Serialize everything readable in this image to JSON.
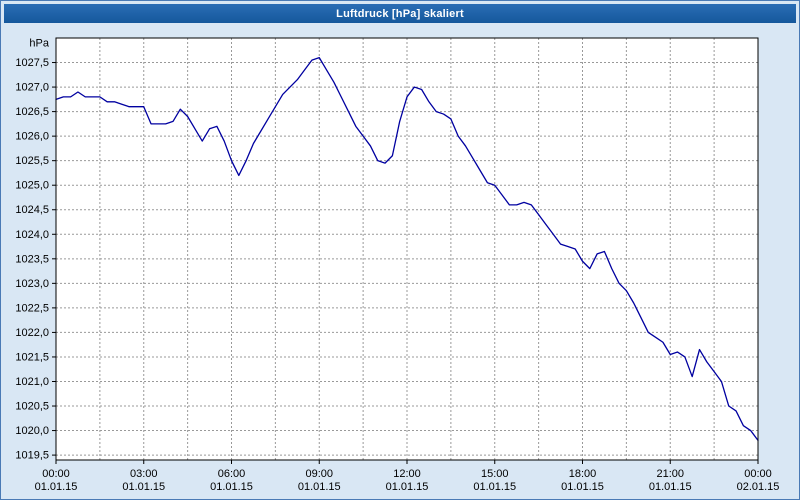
{
  "window": {
    "title": "Luftdruck [hPa] skaliert"
  },
  "colors": {
    "titlebar_bg": "#15589c",
    "titlebar_text": "#ffffff",
    "frame_bg": "#d9e7f4",
    "plot_bg": "#ffffff",
    "grid": "#999999",
    "axis": "#000000",
    "line": "#0000a0",
    "tick_text": "#000000"
  },
  "chart_data": {
    "type": "line",
    "title": "Luftdruck [hPa] skaliert",
    "unit_label": "hPa",
    "series_name": "Luftdruck",
    "x_start_hour": 0,
    "x_step_hour": 0.25,
    "values": [
      1026.75,
      1026.8,
      1026.8,
      1026.9,
      1026.8,
      1026.8,
      1026.8,
      1026.7,
      1026.7,
      1026.65,
      1026.6,
      1026.6,
      1026.6,
      1026.25,
      1026.25,
      1026.25,
      1026.3,
      1026.55,
      1026.4,
      1026.15,
      1025.9,
      1026.15,
      1026.2,
      1025.9,
      1025.5,
      1025.2,
      1025.5,
      1025.85,
      1026.1,
      1026.35,
      1026.6,
      1026.85,
      1027.0,
      1027.15,
      1027.35,
      1027.55,
      1027.6,
      1027.35,
      1027.1,
      1026.8,
      1026.5,
      1026.2,
      1026.0,
      1025.8,
      1025.5,
      1025.45,
      1025.6,
      1026.3,
      1026.8,
      1027.0,
      1026.95,
      1026.7,
      1026.5,
      1026.45,
      1026.35,
      1026.0,
      1025.8,
      1025.55,
      1025.3,
      1025.05,
      1025.0,
      1024.8,
      1024.6,
      1024.6,
      1024.65,
      1024.6,
      1024.4,
      1024.2,
      1024.0,
      1023.8,
      1023.75,
      1023.7,
      1023.45,
      1023.3,
      1023.6,
      1023.65,
      1023.3,
      1023.0,
      1022.85,
      1022.6,
      1022.3,
      1022.0,
      1021.9,
      1021.8,
      1021.55,
      1021.6,
      1021.5,
      1021.1,
      1021.65,
      1021.4,
      1021.2,
      1021.0,
      1020.5,
      1020.4,
      1020.1,
      1020.0,
      1019.8
    ],
    "xticks": [
      {
        "hour": 0,
        "time": "00:00",
        "date": "01.01.15"
      },
      {
        "hour": 3,
        "time": "03:00",
        "date": "01.01.15"
      },
      {
        "hour": 6,
        "time": "06:00",
        "date": "01.01.15"
      },
      {
        "hour": 9,
        "time": "09:00",
        "date": "01.01.15"
      },
      {
        "hour": 12,
        "time": "12:00",
        "date": "01.01.15"
      },
      {
        "hour": 15,
        "time": "15:00",
        "date": "01.01.15"
      },
      {
        "hour": 18,
        "time": "18:00",
        "date": "01.01.15"
      },
      {
        "hour": 21,
        "time": "21:00",
        "date": "01.01.15"
      },
      {
        "hour": 24,
        "time": "00:00",
        "date": "02.01.15"
      }
    ],
    "yticks": [
      {
        "v": 1019.5,
        "label": "1019,5"
      },
      {
        "v": 1020.0,
        "label": "1020,0"
      },
      {
        "v": 1020.5,
        "label": "1020,5"
      },
      {
        "v": 1021.0,
        "label": "1021,0"
      },
      {
        "v": 1021.5,
        "label": "1021,5"
      },
      {
        "v": 1022.0,
        "label": "1022,0"
      },
      {
        "v": 1022.5,
        "label": "1022,5"
      },
      {
        "v": 1023.0,
        "label": "1023,0"
      },
      {
        "v": 1023.5,
        "label": "1023,5"
      },
      {
        "v": 1024.0,
        "label": "1024,0"
      },
      {
        "v": 1024.5,
        "label": "1024,5"
      },
      {
        "v": 1025.0,
        "label": "1025,0"
      },
      {
        "v": 1025.5,
        "label": "1025,5"
      },
      {
        "v": 1026.0,
        "label": "1026,0"
      },
      {
        "v": 1026.5,
        "label": "1026,5"
      },
      {
        "v": 1027.0,
        "label": "1027,0"
      },
      {
        "v": 1027.5,
        "label": "1027,5"
      }
    ],
    "ylim": [
      1019.4,
      1028.0
    ],
    "xlim_hours": [
      0,
      24
    ],
    "grid": {
      "horizontal_step": 0.5,
      "vertical_step_hours": 1.5,
      "style": "dashed"
    },
    "legend": "none"
  }
}
